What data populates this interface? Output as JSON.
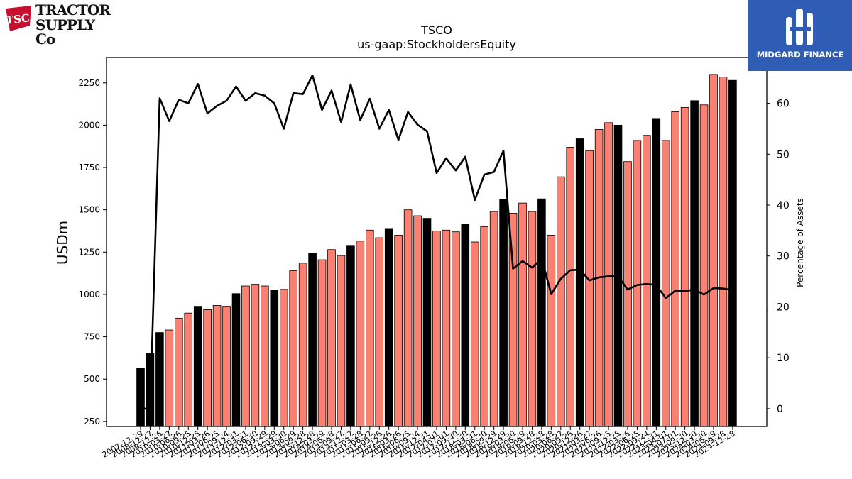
{
  "logos": {
    "left_brand_line1": "TRACTOR",
    "left_brand_line2": "SUPPLY Co",
    "left_badge": "TSC",
    "right_brand": "MIDGARD FINANCE"
  },
  "chart_data": {
    "type": "bar",
    "title": "TSCO",
    "subtitle": "us-gaap:StockholdersEquity",
    "ylabel": "USDm",
    "y2label": "Percentage of Assets",
    "ylim": [
      220,
      2400
    ],
    "y2lim": [
      -3.5,
      69
    ],
    "yticks": [
      250,
      500,
      750,
      1000,
      1250,
      1500,
      1750,
      2000,
      2250
    ],
    "y2ticks": [
      0,
      10,
      20,
      30,
      40,
      50,
      60
    ],
    "colors": {
      "annual_bar": "#000000",
      "quarter_bar": "#fa8072",
      "line": "#000000"
    },
    "series": [
      {
        "name": "Stockholders Equity (USDm)",
        "kind": "bar",
        "values": [
          565,
          650,
          775,
          790,
          860,
          890,
          930,
          910,
          935,
          930,
          1005,
          1050,
          1060,
          1050,
          1025,
          1030,
          1140,
          1185,
          1245,
          1205,
          1265,
          1230,
          1290,
          1315,
          1380,
          1335,
          1390,
          1350,
          1500,
          1465,
          1450,
          1375,
          1380,
          1370,
          1415,
          1310,
          1400,
          1490,
          1560,
          1480,
          1540,
          1490,
          1565,
          1350,
          1695,
          1870,
          1920,
          1850,
          1975,
          2015,
          2000,
          1785,
          1910,
          1940,
          2040,
          1910,
          2080,
          2105,
          2145,
          2120,
          2300,
          2285,
          2265
        ]
      },
      {
        "name": "Percentage of Assets",
        "kind": "line",
        "values": [
          0,
          0,
          61,
          56.5,
          60.7,
          60,
          63.8,
          58,
          59.5,
          60.5,
          63.3,
          60.5,
          62,
          61.5,
          60,
          55,
          62,
          61.8,
          65.5,
          58.7,
          62.5,
          56.3,
          63.7,
          56.7,
          60.9,
          55,
          58.7,
          52.8,
          58.3,
          55.8,
          54.5,
          46.3,
          49.2,
          46.8,
          49.5,
          41,
          46,
          46.5,
          50.7,
          27.5,
          29,
          27.7,
          29.5,
          22.5,
          25.5,
          27.2,
          27.3,
          25.2,
          25.8,
          26,
          26,
          23.4,
          24.3,
          24.5,
          24.3,
          21.7,
          23.2,
          23.1,
          23.4,
          22.4,
          23.7,
          23.6,
          23.3
        ]
      }
    ],
    "bar_is_annual": [
      true,
      true,
      true,
      false,
      false,
      false,
      true,
      false,
      false,
      false,
      true,
      false,
      false,
      false,
      true,
      false,
      false,
      false,
      true,
      false,
      false,
      false,
      true,
      false,
      false,
      false,
      true,
      false,
      false,
      false,
      true,
      false,
      false,
      false,
      true,
      false,
      false,
      false,
      true,
      false,
      false,
      false,
      true,
      false,
      false,
      false,
      true,
      false,
      false,
      false,
      true,
      false,
      false,
      false,
      true,
      false,
      false,
      false,
      true,
      false,
      false,
      false,
      true
    ],
    "categories": [
      "2007-12-29",
      "2008-12-27",
      "2009-12-26",
      "2010-03-27",
      "2010-06-26",
      "2010-09-25",
      "2010-12-25",
      "2011-03-26",
      "2011-06-25",
      "2011-09-24",
      "2011-12-31",
      "2012-03-31",
      "2012-06-30",
      "2012-09-29",
      "2012-12-29",
      "2013-03-30",
      "2013-06-29",
      "2013-09-28",
      "2013-12-28",
      "2014-03-29",
      "2014-06-28",
      "2014-09-27",
      "2014-12-27",
      "2015-03-28",
      "2015-06-27",
      "2015-09-26",
      "2015-12-26",
      "2016-03-26",
      "2016-06-25",
      "2016-09-24",
      "2016-12-31",
      "2017-04-01",
      "2017-07-01",
      "2017-09-30",
      "2017-12-30",
      "2018-03-31",
      "2018-06-30",
      "2018-09-29",
      "2018-12-29",
      "2019-03-30",
      "2019-06-29",
      "2019-09-28",
      "2019-12-28",
      "2020-03-28",
      "2020-06-27",
      "2020-09-26",
      "2020-12-26",
      "2021-03-27",
      "2021-06-26",
      "2021-09-25",
      "2021-12-25",
      "2022-03-26",
      "2022-06-25",
      "2022-09-24",
      "2022-12-31",
      "2023-04-01",
      "2023-07-01",
      "2023-09-30",
      "2023-12-30",
      "2024-03-30",
      "2024-06-29",
      "2024-09-28",
      "2024-12-28"
    ],
    "grid": false,
    "legend": "none"
  }
}
